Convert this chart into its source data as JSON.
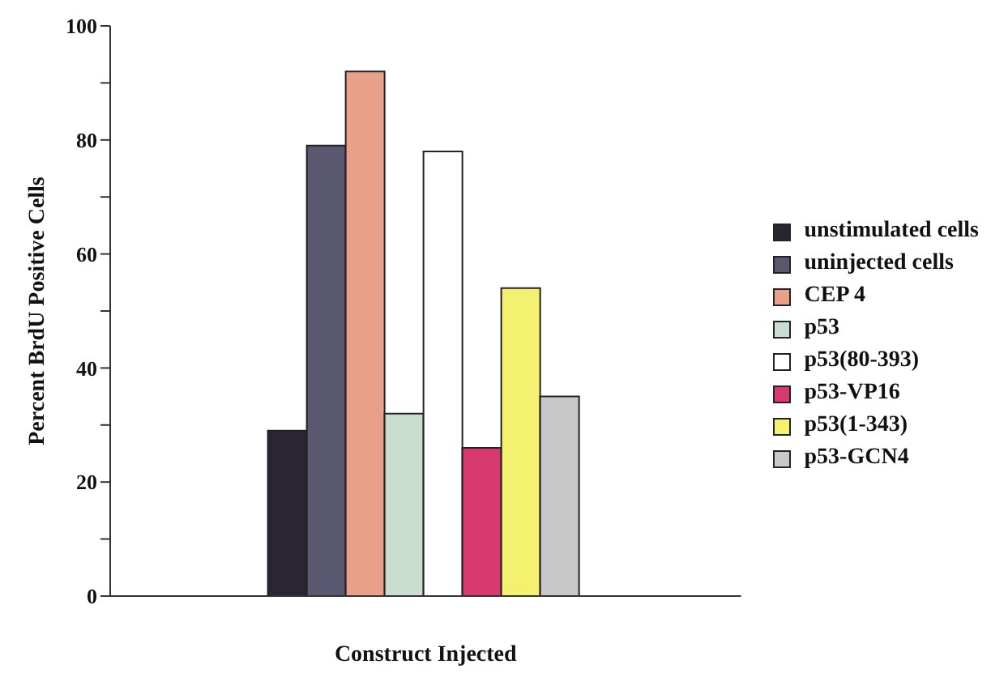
{
  "chart_data": {
    "type": "bar",
    "xlabel": "Construct Injected",
    "ylabel": "Percent BrdU Positive Cells",
    "categories": [
      null
    ],
    "series": [
      {
        "name": "unstimulated cells",
        "color": "#2a2530",
        "values": [
          29
        ]
      },
      {
        "name": "uninjected cells",
        "color": "#5a5870",
        "values": [
          79
        ]
      },
      {
        "name": "CEP 4",
        "color": "#e8a088",
        "values": [
          92
        ]
      },
      {
        "name": "p53",
        "color": "#c8dcd0",
        "values": [
          32
        ]
      },
      {
        "name": "p53(80-393)",
        "color": "#ffffff",
        "values": [
          78
        ]
      },
      {
        "name": "p53-VP16",
        "color": "#d83a70",
        "values": [
          26
        ]
      },
      {
        "name": "p53(1-343)",
        "color": "#f4f070",
        "values": [
          54
        ]
      },
      {
        "name": "p53-GCN4",
        "color": "#c8c8c8",
        "values": [
          35
        ]
      }
    ],
    "ylim": [
      0,
      100
    ],
    "yticks": [
      0,
      {
        "value": 10,
        "label": null
      },
      20,
      {
        "value": 30,
        "label": null
      },
      40,
      {
        "value": 50,
        "label": null
      },
      60,
      {
        "value": 70,
        "label": null
      },
      80,
      {
        "value": 90,
        "label": null
      },
      100
    ],
    "legend": "right"
  }
}
